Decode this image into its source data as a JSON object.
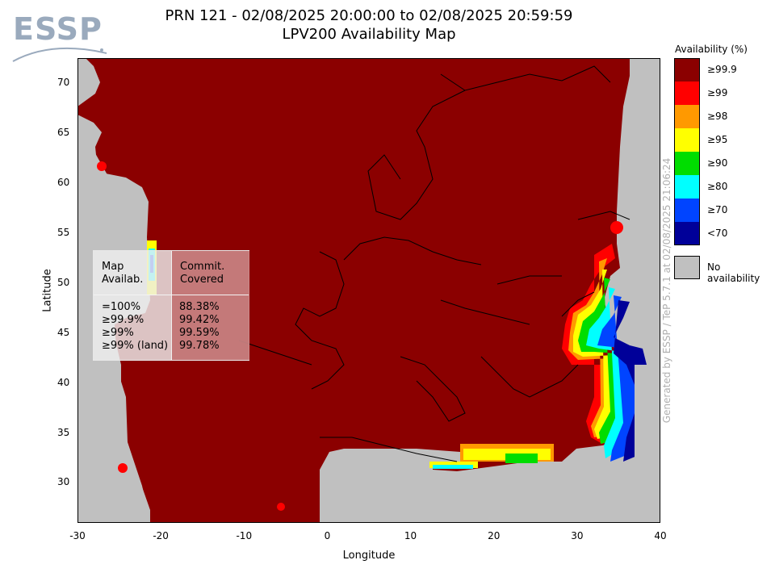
{
  "logo": {
    "text": "ESSP"
  },
  "header": {
    "title_line1": "PRN 121 - 02/08/2025 20:00:00 to 02/08/2025 20:59:59",
    "title_line2": "LPV200 Availability Map"
  },
  "axes": {
    "xlabel": "Longitude",
    "ylabel": "Latitude",
    "x_ticks": [
      "-30",
      "-20",
      "-10",
      "0",
      "10",
      "20",
      "30",
      "40"
    ],
    "y_ticks": [
      "70",
      "65",
      "60",
      "55",
      "50",
      "45",
      "40",
      "35",
      "30"
    ],
    "x_range": [
      -30,
      40
    ],
    "y_range": [
      26,
      72.5
    ]
  },
  "legend": {
    "title": "Availability (%)",
    "items": [
      {
        "label": "≥99.9",
        "color": "#8b0000"
      },
      {
        "label": "≥99",
        "color": "#ff0000"
      },
      {
        "label": "≥98",
        "color": "#ff9900"
      },
      {
        "label": "≥95",
        "color": "#ffff00"
      },
      {
        "label": "≥90",
        "color": "#00dd00"
      },
      {
        "label": "≥80",
        "color": "#00ffff"
      },
      {
        "label": "≥70",
        "color": "#0044ff"
      },
      {
        "label": "<70",
        "color": "#000099"
      }
    ],
    "no_availability": {
      "label": "No availability",
      "color": "#c0c0c0"
    }
  },
  "stats": {
    "col1_header": "Map\nAvailab.",
    "col2_header": "Commit.\nCovered",
    "rows": [
      {
        "label": "=100%",
        "value": "88.38%"
      },
      {
        "label": "≥99.9%",
        "value": "99.42%"
      },
      {
        "label": "≥99%",
        "value": "99.59%"
      },
      {
        "label": "≥99% (land)",
        "value": "99.78%"
      }
    ]
  },
  "watermark": "Generated by ESSP / TeP 5.7.1 at 02/08/2025 21:06:24"
}
